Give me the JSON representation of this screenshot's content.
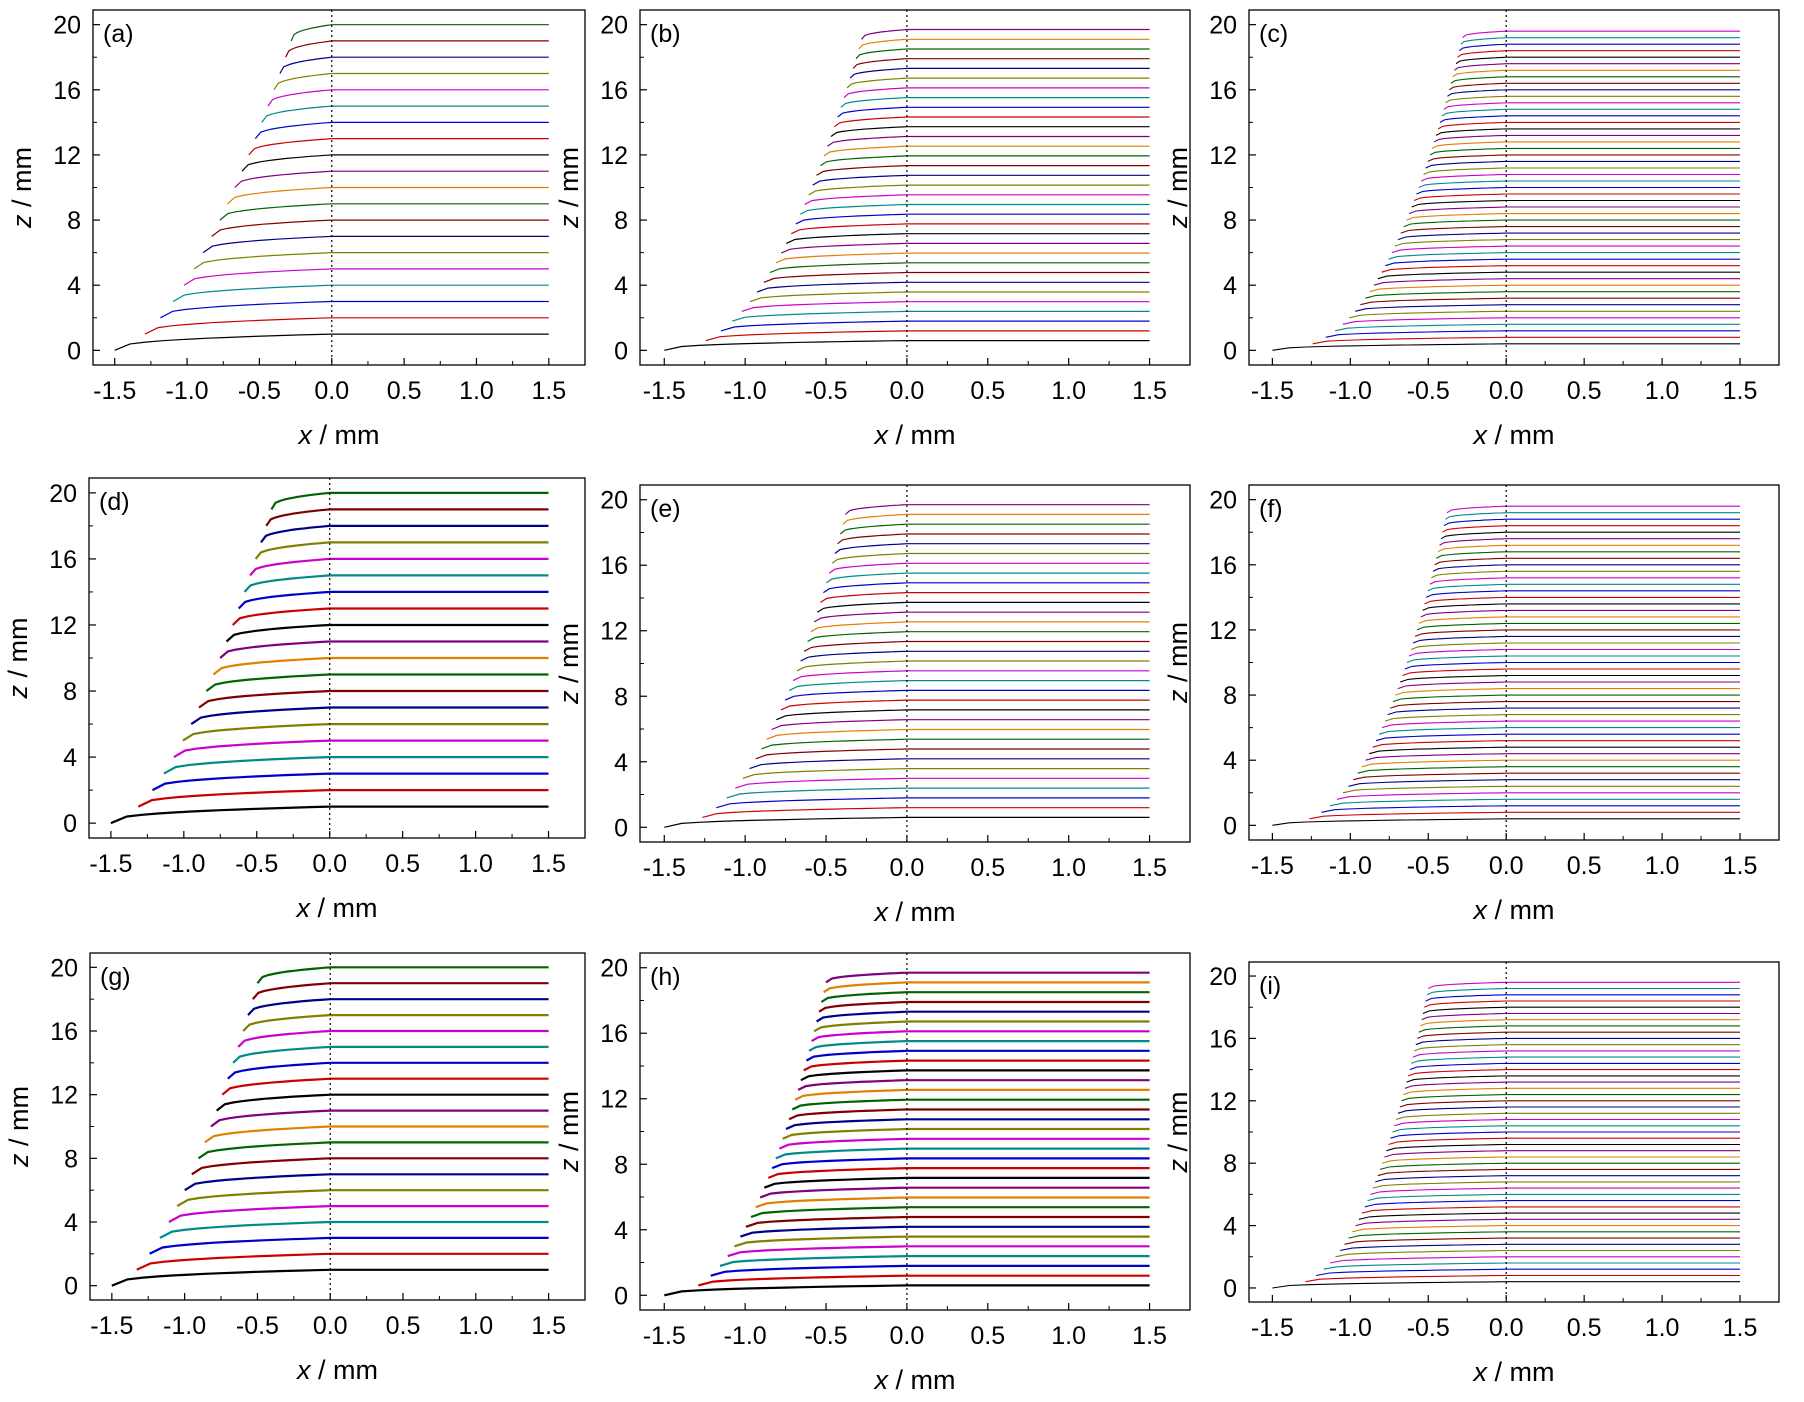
{
  "figure": {
    "colors": [
      "#000000",
      "#cc0000",
      "#0000cc",
      "#008b8b",
      "#cc00cc",
      "#808000",
      "#00008b",
      "#800000",
      "#006400",
      "#e08000",
      "#800080"
    ],
    "center_line": "x = 0 (dotted)"
  },
  "chart_data": [
    {
      "type": "line",
      "panel_label": "(a)",
      "xlabel_var": "x",
      "xlabel_unit": " / mm",
      "ylabel_var": "z",
      "ylabel_unit": " / mm",
      "xlim": [
        -1.65,
        1.75
      ],
      "ylim": [
        -0.9,
        20.9
      ],
      "xticks": [
        "-1.5",
        "-1.0",
        "-0.5",
        "0.0",
        "0.5",
        "1.0",
        "1.5"
      ],
      "yticks": [
        "0",
        "4",
        "8",
        "12",
        "16",
        "20"
      ],
      "layers": 20,
      "z_top": 20,
      "z_first": 1,
      "x_start": -1.5,
      "x_wall_top": -0.28,
      "curve_exponent": 0.6,
      "linewidth": 1.2,
      "description": "Stacked layer profiles z(x), each layer flat for x>=0 and stepping down to the left"
    },
    {
      "type": "line",
      "panel_label": "(b)",
      "xlabel_var": "x",
      "xlabel_unit": " / mm",
      "ylabel_var": "z",
      "ylabel_unit": " / mm",
      "xlim": [
        -1.65,
        1.75
      ],
      "ylim": [
        -0.9,
        20.9
      ],
      "xticks": [
        "-1.5",
        "-1.0",
        "-0.5",
        "0.0",
        "0.5",
        "1.0",
        "1.5"
      ],
      "yticks": [
        "0",
        "4",
        "8",
        "12",
        "16",
        "20"
      ],
      "layers": 33,
      "z_top": 19.7,
      "z_first": 0.6,
      "x_start": -1.5,
      "x_wall_top": -0.28,
      "curve_exponent": 0.45,
      "linewidth": 1.2
    },
    {
      "type": "line",
      "panel_label": "(c)",
      "xlabel_var": "x",
      "xlabel_unit": " / mm",
      "ylabel_var": "z",
      "ylabel_unit": " / mm",
      "xlim": [
        -1.65,
        1.75
      ],
      "ylim": [
        -0.9,
        20.9
      ],
      "xticks": [
        "-1.5",
        "-1.0",
        "-0.5",
        "0.0",
        "0.5",
        "1.0",
        "1.5"
      ],
      "yticks": [
        "0",
        "4",
        "8",
        "12",
        "16",
        "20"
      ],
      "layers": 49,
      "z_top": 19.6,
      "z_first": 0.4,
      "x_start": -1.5,
      "x_wall_top": -0.28,
      "curve_exponent": 0.4,
      "linewidth": 1.1
    },
    {
      "type": "line",
      "panel_label": "(d)",
      "xlabel_var": "x",
      "xlabel_unit": " / mm",
      "ylabel_var": "z",
      "ylabel_unit": " / mm",
      "xlim": [
        -1.65,
        1.75
      ],
      "ylim": [
        -0.9,
        20.9
      ],
      "xticks": [
        "-1.5",
        "-1.0",
        "-0.5",
        "0.0",
        "0.5",
        "1.0",
        "1.5"
      ],
      "yticks": [
        "0",
        "4",
        "8",
        "12",
        "16",
        "20"
      ],
      "layers": 20,
      "z_top": 20,
      "z_first": 1,
      "x_start": -1.5,
      "x_wall_top": -0.4,
      "curve_exponent": 0.6,
      "linewidth": 2.2
    },
    {
      "type": "line",
      "panel_label": "(e)",
      "xlabel_var": "x",
      "xlabel_unit": " / mm",
      "ylabel_var": "z",
      "ylabel_unit": " / mm",
      "xlim": [
        -1.65,
        1.75
      ],
      "ylim": [
        -0.9,
        20.9
      ],
      "xticks": [
        "-1.5",
        "-1.0",
        "-0.5",
        "0.0",
        "0.5",
        "1.0",
        "1.5"
      ],
      "yticks": [
        "0",
        "4",
        "8",
        "12",
        "16",
        "20"
      ],
      "layers": 33,
      "z_top": 19.7,
      "z_first": 0.6,
      "x_start": -1.5,
      "x_wall_top": -0.38,
      "curve_exponent": 0.45,
      "linewidth": 1.2
    },
    {
      "type": "line",
      "panel_label": "(f)",
      "xlabel_var": "x",
      "xlabel_unit": " / mm",
      "ylabel_var": "z",
      "ylabel_unit": " / mm",
      "xlim": [
        -1.65,
        1.75
      ],
      "ylim": [
        -0.9,
        20.9
      ],
      "xticks": [
        "-1.5",
        "-1.0",
        "-0.5",
        "0.0",
        "0.5",
        "1.0",
        "1.5"
      ],
      "yticks": [
        "0",
        "4",
        "8",
        "12",
        "16",
        "20"
      ],
      "layers": 49,
      "z_top": 19.6,
      "z_first": 0.4,
      "x_start": -1.5,
      "x_wall_top": -0.38,
      "curve_exponent": 0.4,
      "linewidth": 1.1
    },
    {
      "type": "line",
      "panel_label": "(g)",
      "xlabel_var": "x",
      "xlabel_unit": " / mm",
      "ylabel_var": "z",
      "ylabel_unit": " / mm",
      "xlim": [
        -1.65,
        1.75
      ],
      "ylim": [
        -0.9,
        20.9
      ],
      "xticks": [
        "-1.5",
        "-1.0",
        "-0.5",
        "0.0",
        "0.5",
        "1.0",
        "1.5"
      ],
      "yticks": [
        "0",
        "4",
        "8",
        "12",
        "16",
        "20"
      ],
      "layers": 20,
      "z_top": 20,
      "z_first": 1,
      "x_start": -1.5,
      "x_wall_top": -0.5,
      "curve_exponent": 0.6,
      "linewidth": 2.2
    },
    {
      "type": "line",
      "panel_label": "(h)",
      "xlabel_var": "x",
      "xlabel_unit": " / mm",
      "ylabel_var": "z",
      "ylabel_unit": " / mm",
      "xlim": [
        -1.65,
        1.75
      ],
      "ylim": [
        -0.9,
        20.9
      ],
      "xticks": [
        "-1.5",
        "-1.0",
        "-0.5",
        "0.0",
        "0.5",
        "1.0",
        "1.5"
      ],
      "yticks": [
        "0",
        "4",
        "8",
        "12",
        "16",
        "20"
      ],
      "layers": 33,
      "z_top": 19.7,
      "z_first": 0.6,
      "x_start": -1.5,
      "x_wall_top": -0.5,
      "curve_exponent": 0.45,
      "linewidth": 2.2
    },
    {
      "type": "line",
      "panel_label": "(i)",
      "xlabel_var": "x",
      "xlabel_unit": " / mm",
      "ylabel_var": "z",
      "ylabel_unit": " / mm",
      "xlim": [
        -1.65,
        1.75
      ],
      "ylim": [
        -0.9,
        20.9
      ],
      "xticks": [
        "-1.5",
        "-1.0",
        "-0.5",
        "0.0",
        "0.5",
        "1.0",
        "1.5"
      ],
      "yticks": [
        "0",
        "4",
        "8",
        "12",
        "16",
        "20"
      ],
      "layers": 49,
      "z_top": 19.6,
      "z_first": 0.4,
      "x_start": -1.5,
      "x_wall_top": -0.5,
      "curve_exponent": 0.4,
      "linewidth": 1.1
    }
  ]
}
